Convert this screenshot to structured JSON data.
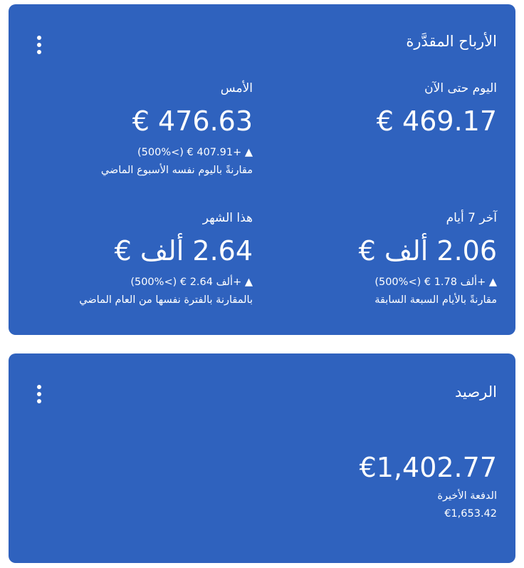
{
  "earnings": {
    "title": "الأرباح المقدَّرة",
    "menu_icon": "more-vert-icon",
    "items": [
      {
        "label": "اليوم حتى الآن",
        "value": "€ 469.17"
      },
      {
        "label": "الأمس",
        "value": "€ 476.63",
        "change": "(500%<) € 407.91+ ▲",
        "comparison": "مقارنةً باليوم نفسه الأسبوع الماضي"
      },
      {
        "label": "آخر 7 أيام",
        "value": "2.06 ألف €",
        "change": "(500%<) € ألف 1.78+ ▲",
        "comparison": "مقارنةً بالأيام السبعة السابقة"
      },
      {
        "label": "هذا الشهر",
        "value": "2.64 ألف €",
        "change": "(500%<) € ألف 2.64+ ▲",
        "comparison": "بالمقارنة بالفترة نفسها من العام الماضي"
      }
    ]
  },
  "balance": {
    "title": "الرصيد",
    "menu_icon": "more-vert-icon",
    "value": "€1,402.77",
    "last_payment_label": "الدفعة الأخيرة",
    "last_payment_value": "€1,653.42"
  },
  "colors": {
    "card": "#2f62be",
    "text": "#ffffff"
  }
}
